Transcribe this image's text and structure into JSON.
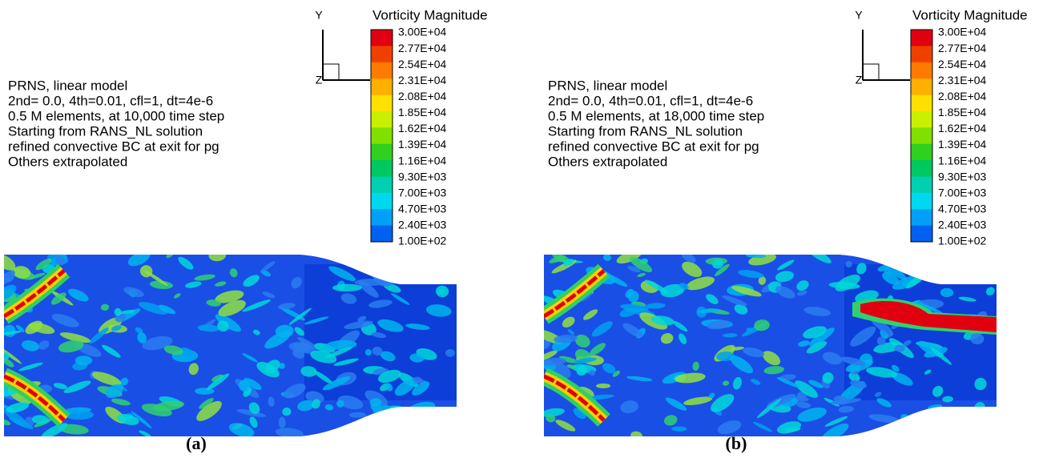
{
  "panels": [
    {
      "annotation_lines": [
        "PRNS, linear model",
        "2nd= 0.0, 4th=0.01, cfl=1, dt=4e-6",
        "0.5 M elements, at 10,000 time step",
        "Starting from  RANS_NL solution",
        "refined convective BC at exit for pg",
        "Others extrapolated"
      ],
      "axis": {
        "y": "Y",
        "z": "Z"
      },
      "legend": {
        "title": "Vorticity Magnitude",
        "levels": [
          "3.00E+04",
          "2.77E+04",
          "2.54E+04",
          "2.31E+04",
          "2.08E+04",
          "1.85E+04",
          "1.62E+04",
          "1.39E+04",
          "1.16E+04",
          "9.30E+03",
          "7.00E+03",
          "4.70E+03",
          "2.40E+03",
          "1.00E+02"
        ]
      },
      "label": "(a)"
    },
    {
      "annotation_lines": [
        "PRNS, linear model",
        "2nd= 0.0, 4th=0.01, cfl=1, dt=4e-6",
        "0.5 M elements, at 18,000 time step",
        "Starting from  RANS_NL solution",
        "refined convective BC at exit for pg",
        "Others extrapolated"
      ],
      "axis": {
        "y": "Y",
        "z": "Z"
      },
      "legend": {
        "title": "Vorticity Magnitude",
        "levels": [
          "3.00E+04",
          "2.77E+04",
          "2.54E+04",
          "2.31E+04",
          "2.08E+04",
          "1.85E+04",
          "1.62E+04",
          "1.39E+04",
          "1.16E+04",
          "9.30E+03",
          "7.00E+03",
          "4.70E+03",
          "2.40E+03",
          "1.00E+02"
        ]
      },
      "label": "(b)"
    }
  ]
}
